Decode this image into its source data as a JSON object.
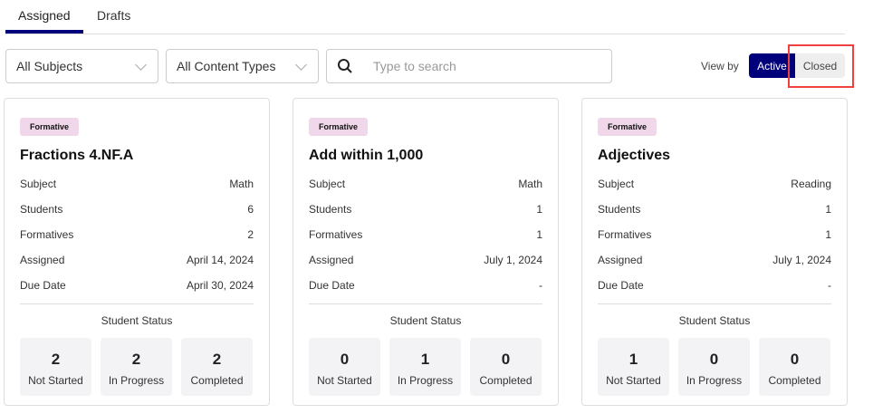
{
  "tabs": [
    {
      "label": "Assigned",
      "active": true
    },
    {
      "label": "Drafts",
      "active": false
    }
  ],
  "filters": {
    "subject": "All Subjects",
    "content_type": "All Content Types",
    "search_placeholder": "Type to search",
    "search_value": ""
  },
  "view_by": {
    "label": "View by",
    "active": "Active",
    "closed": "Closed"
  },
  "field_labels": {
    "subject": "Subject",
    "students": "Students",
    "formatives": "Formatives",
    "assigned": "Assigned",
    "due": "Due Date",
    "student_status": "Student Status",
    "not_started": "Not Started",
    "in_progress": "In Progress",
    "completed": "Completed"
  },
  "cards": [
    {
      "badge": "Formative",
      "title": "Fractions 4.NF.A",
      "subject": "Math",
      "students": "6",
      "formatives": "2",
      "assigned": "April 14, 2024",
      "due": "April 30, 2024",
      "not_started": "2",
      "in_progress": "2",
      "completed": "2"
    },
    {
      "badge": "Formative",
      "title": "Add within 1,000",
      "subject": "Math",
      "students": "1",
      "formatives": "1",
      "assigned": "July 1, 2024",
      "due": "-",
      "not_started": "0",
      "in_progress": "1",
      "completed": "0"
    },
    {
      "badge": "Formative",
      "title": "Adjectives",
      "subject": "Reading",
      "students": "1",
      "formatives": "1",
      "assigned": "July 1, 2024",
      "due": "-",
      "not_started": "1",
      "in_progress": "0",
      "completed": "0"
    }
  ],
  "colors": {
    "accent": "#00007a",
    "badge": "#f0d8ea",
    "highlight": "#f04040"
  }
}
